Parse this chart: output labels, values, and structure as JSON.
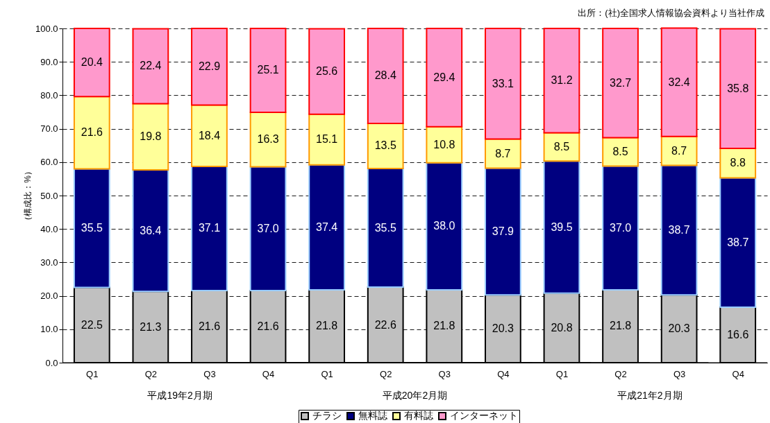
{
  "chart_data": {
    "type": "bar",
    "stacked": true,
    "ylabel": "（構成比：%）",
    "categories": [
      "Q1",
      "Q2",
      "Q3",
      "Q4",
      "Q1",
      "Q2",
      "Q3",
      "Q4",
      "Q1",
      "Q2",
      "Q3",
      "Q4"
    ],
    "series": [
      {
        "name": "チラシ",
        "color": "#c0c0c0",
        "values": [
          22.5,
          21.3,
          21.6,
          21.6,
          21.8,
          22.6,
          21.8,
          20.3,
          20.8,
          21.8,
          20.3,
          16.6
        ]
      },
      {
        "name": "無料誌",
        "color": "#000080",
        "values": [
          35.5,
          36.4,
          37.1,
          37.0,
          37.4,
          35.5,
          38.0,
          37.9,
          39.5,
          37.0,
          38.7,
          38.7
        ],
        "value_labels": [
          "35.5",
          "36.4",
          "37.1",
          "37.0",
          "37.4",
          "35.5",
          "38.0",
          "37.9",
          "39.5",
          "37.0",
          "38.7",
          "38.7"
        ]
      },
      {
        "name": "有料誌",
        "color": "#ffff99",
        "values": [
          21.6,
          19.8,
          18.4,
          16.3,
          15.1,
          13.5,
          10.8,
          8.7,
          8.5,
          8.5,
          8.7,
          8.8
        ]
      },
      {
        "name": "インターネット",
        "color": "#ff99cc",
        "values": [
          20.4,
          22.4,
          22.9,
          25.1,
          25.6,
          28.4,
          29.4,
          33.1,
          31.2,
          32.7,
          32.4,
          35.8
        ]
      }
    ],
    "ylim": [
      0,
      100
    ],
    "yticks": [
      {
        "value": 0,
        "label": "0.0"
      },
      {
        "value": 10,
        "label": "10.0"
      },
      {
        "value": 20,
        "label": "20.0"
      },
      {
        "value": 30,
        "label": "30.0"
      },
      {
        "value": 40,
        "label": "40.0"
      },
      {
        "value": 50,
        "label": "50.0"
      },
      {
        "value": 60,
        "label": "60.0"
      },
      {
        "value": 70,
        "label": "70.0"
      },
      {
        "value": 80,
        "label": "80.0"
      },
      {
        "value": 90,
        "label": "90.0"
      },
      {
        "value": 100,
        "label": "100.0"
      }
    ],
    "grid": "y",
    "legend": "bottom",
    "data_labels": true,
    "annotations": [
      "出所：(社)全国求人情報協会資料より当社作成",
      "平成19年2月期",
      "平成20年2月期",
      "平成21年2月期"
    ]
  }
}
